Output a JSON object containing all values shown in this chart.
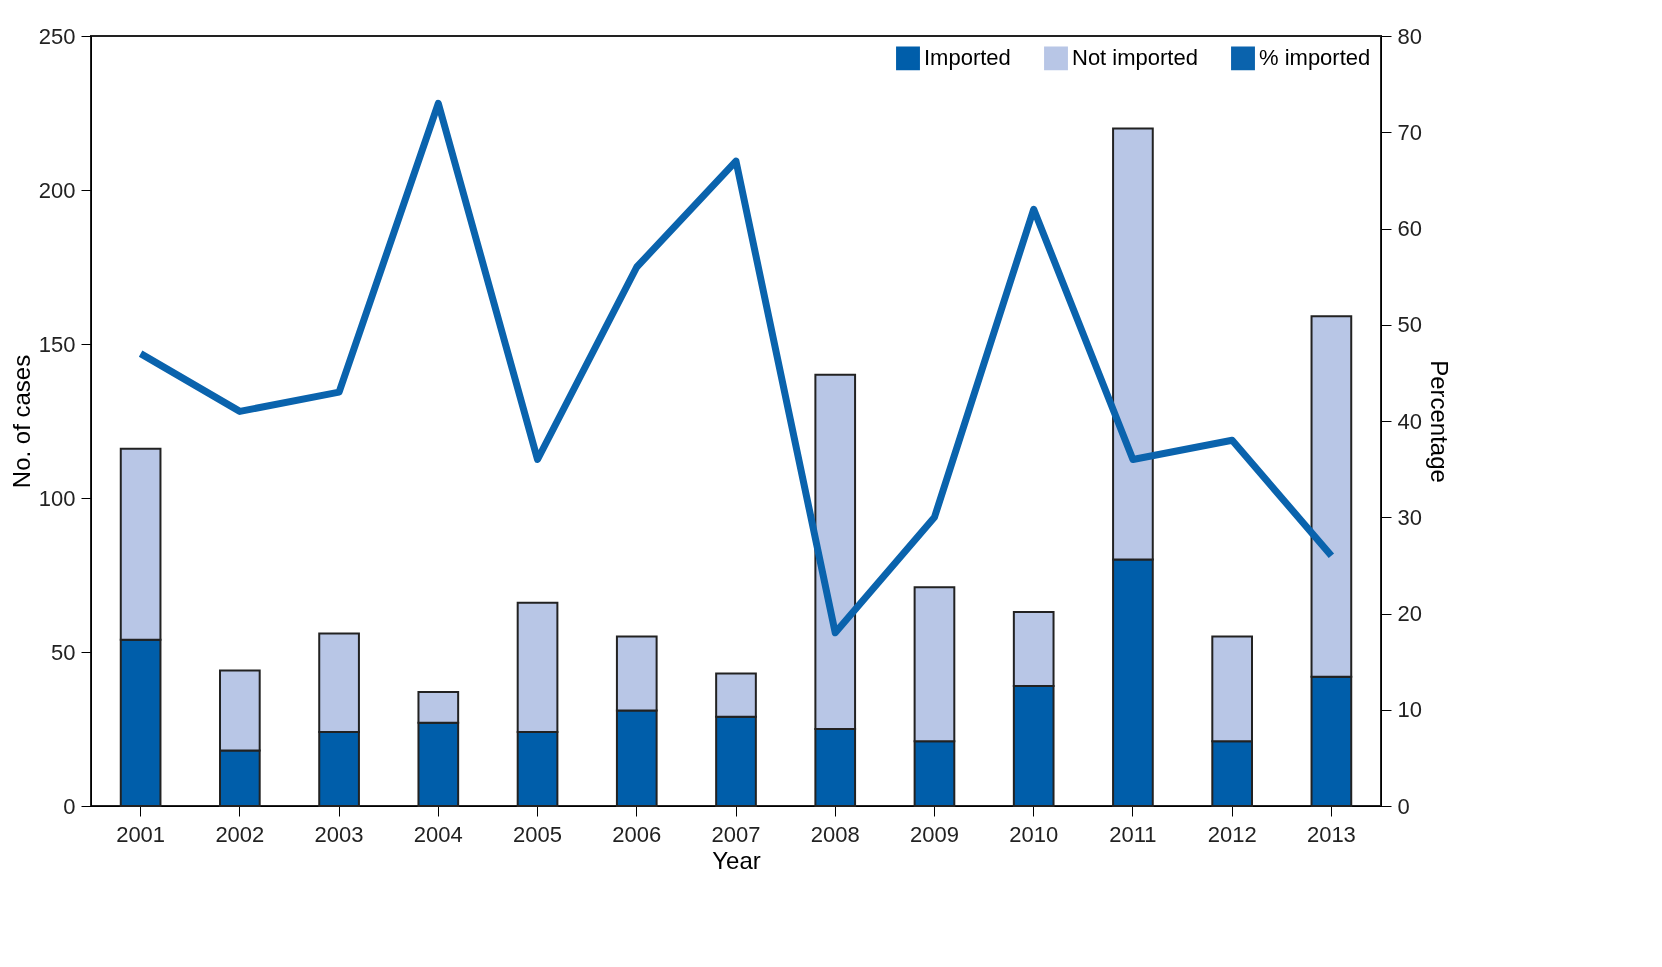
{
  "chart_data": {
    "type": "bar",
    "stacked": true,
    "xlabel": "Year",
    "ylabel": "No. of cases",
    "y2label": "Percentage",
    "categories": [
      "2001",
      "2002",
      "2003",
      "2004",
      "2005",
      "2006",
      "2007",
      "2008",
      "2009",
      "2010",
      "2011",
      "2012",
      "2013"
    ],
    "series": [
      {
        "name": "Imported",
        "color": "#005eaa",
        "values": [
          54,
          18,
          24,
          27,
          24,
          31,
          29,
          25,
          21,
          39,
          80,
          21,
          42
        ]
      },
      {
        "name": "Not imported",
        "color": "#b8c6e6",
        "values": [
          62,
          26,
          32,
          10,
          42,
          24,
          14,
          115,
          50,
          24,
          140,
          34,
          117
        ]
      },
      {
        "name": "% imported",
        "type": "line",
        "axis": "y2",
        "color": "#0a63ad",
        "values": [
          47,
          41,
          43,
          73,
          36,
          56,
          67,
          18,
          30,
          62,
          36,
          38,
          26
        ]
      }
    ],
    "ylim": [
      0,
      250
    ],
    "yticks": [
      0,
      50,
      100,
      150,
      200,
      250
    ],
    "y2lim": [
      0,
      80
    ],
    "y2ticks": [
      0,
      10,
      20,
      30,
      40,
      50,
      60,
      70,
      80
    ],
    "grid": false,
    "legend": "top right"
  }
}
